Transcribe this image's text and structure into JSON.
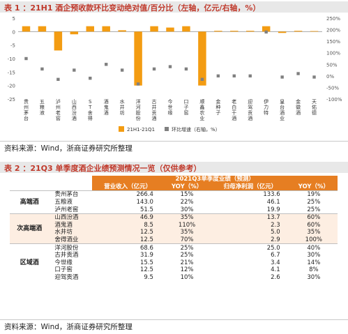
{
  "table1_title": "表 1 ：21H1 酒企预收款环比变动绝对值/百分比（左轴，亿元/右轴，%）",
  "table2_title": "表 2 ：21Q3 单季度酒企业绩预测情况一览（仅供参考）",
  "source1": "资料来源：Wind，浙商证券研究所整理",
  "source2": "资料来源：Wind，浙商证券研究所整理",
  "chart_data": {
    "type": "bar",
    "categories": [
      "贵州茅台",
      "五粮液",
      "泸州老窖",
      "山西汾酒",
      "ST舍得",
      "酒鬼酒",
      "水井坊",
      "洋河股份",
      "古井贡酒",
      "今世缘",
      "口子窖",
      "顺鑫农业",
      "金种子",
      "老白干酒",
      "迎驾贡酒",
      "伊力特",
      "皇台酒业",
      "金徽酒",
      "天佑德"
    ],
    "series": [
      {
        "name": "21H1-21Q1",
        "axis": "left",
        "type": "bar",
        "color": "#f39c12",
        "values": [
          2.0,
          2.0,
          -7.0,
          -1.0,
          2.0,
          2.0,
          0.5,
          -20.0,
          2.0,
          1.5,
          2.0,
          -20.0,
          0.3,
          0.3,
          0.3,
          2.0,
          -0.5,
          0.3,
          0.2
        ]
      },
      {
        "name": "环比增速（右轴，%）",
        "axis": "right",
        "type": "scatter",
        "color": "#808080",
        "values": [
          75,
          30,
          -15,
          25,
          -10,
          50,
          25,
          -35,
          30,
          40,
          30,
          -15,
          0,
          0,
          0,
          190,
          -5,
          10,
          -5
        ]
      }
    ],
    "yLeft": {
      "min": -25,
      "max": 5,
      "ticks": [
        5,
        0,
        -5,
        -10,
        -15,
        -20,
        -25
      ]
    },
    "yRight": {
      "min": -100,
      "max": 250,
      "ticks": [
        "250%",
        "200%",
        "150%",
        "100%",
        "50%",
        "0%",
        "-50%",
        "-100%"
      ],
      "tickValues": [
        250,
        200,
        150,
        100,
        50,
        0,
        -50,
        -100
      ]
    },
    "legend": {
      "placement": "bottom-center"
    }
  },
  "table2": {
    "header_top": "2021Q3单季度业绩（预测）",
    "headers": [
      "营业收入（亿元）",
      "YOY（%）",
      "归母净利润（亿元）",
      "YOY（%）"
    ],
    "groups": [
      {
        "name": "高端酒",
        "rows": [
          [
            "贵州茅台",
            "266.4",
            "15%",
            "133.6",
            "19%"
          ],
          [
            "五粮液",
            "143.0",
            "22%",
            "46.1",
            "25%"
          ],
          [
            "泸州老窖",
            "51.5",
            "30%",
            "19.9",
            "25%"
          ]
        ]
      },
      {
        "name": "次高端酒",
        "rows": [
          [
            "山西汾酒",
            "46.9",
            "35%",
            "13.7",
            "60%"
          ],
          [
            "酒鬼酒",
            "8.5",
            "110%",
            "2.3",
            "60%"
          ],
          [
            "水井坊",
            "12.5",
            "35%",
            "5.0",
            "35%"
          ],
          [
            "舍得酒业",
            "12.5",
            "70%",
            "2.9",
            "100%"
          ]
        ]
      },
      {
        "name": "区域酒",
        "rows": [
          [
            "洋河股份",
            "68.6",
            "25%",
            "25.0",
            "40%"
          ],
          [
            "古井贡酒",
            "31.9",
            "25%",
            "6.7",
            "30%"
          ],
          [
            "今世缘",
            "15.5",
            "21%",
            "3.4",
            "14%"
          ],
          [
            "口子窖",
            "12.5",
            "12%",
            "4.1",
            "8%"
          ],
          [
            "迎驾贡酒",
            "9.5",
            "10%",
            "2.6",
            "30%"
          ]
        ]
      }
    ]
  }
}
